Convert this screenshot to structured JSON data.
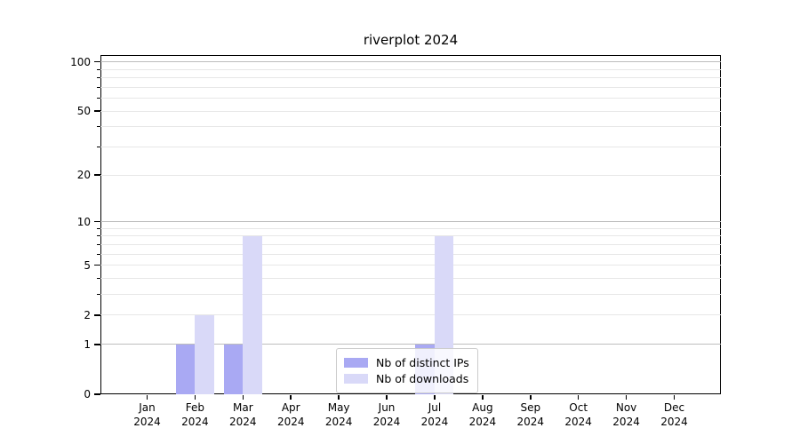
{
  "title": "riverplot 2024",
  "chart_data": {
    "type": "bar",
    "x_tick_months": [
      "Jan",
      "Feb",
      "Mar",
      "Apr",
      "May",
      "Jun",
      "Jul",
      "Aug",
      "Sep",
      "Oct",
      "Nov",
      "Dec"
    ],
    "x_tick_year": "2024",
    "series": [
      {
        "name": "Nb of distinct IPs",
        "color": "#a9a9f3",
        "values": [
          0,
          1,
          1,
          0,
          0,
          0,
          1,
          0,
          0,
          0,
          0,
          0
        ]
      },
      {
        "name": "Nb of downloads",
        "color": "#d9d9f8",
        "values": [
          0,
          2,
          8,
          0,
          0,
          0,
          8,
          0,
          0,
          0,
          0,
          0
        ]
      }
    ],
    "y_axis": {
      "scale": "log1p",
      "ticks": [
        0,
        1,
        2,
        5,
        10,
        20,
        50,
        100
      ],
      "minor_gridlines": [
        3,
        4,
        6,
        7,
        8,
        9,
        30,
        40,
        60,
        70,
        80,
        90
      ],
      "emphasized_gridlines": [
        1,
        10,
        100
      ],
      "ylim": [
        0,
        110
      ]
    },
    "legend": {
      "position": "lower center",
      "entries": [
        "Nb of distinct IPs",
        "Nb of downloads"
      ]
    },
    "grid": true
  },
  "colors": {
    "bar_distinct_ips": "#a9a9f3",
    "bar_downloads": "#d9d9f8",
    "grid_emphasized": "#bdbdbd",
    "grid_light": "#e7e7e7",
    "spine": "#000000",
    "legend_border": "#cccccc",
    "background": "#ffffff"
  }
}
